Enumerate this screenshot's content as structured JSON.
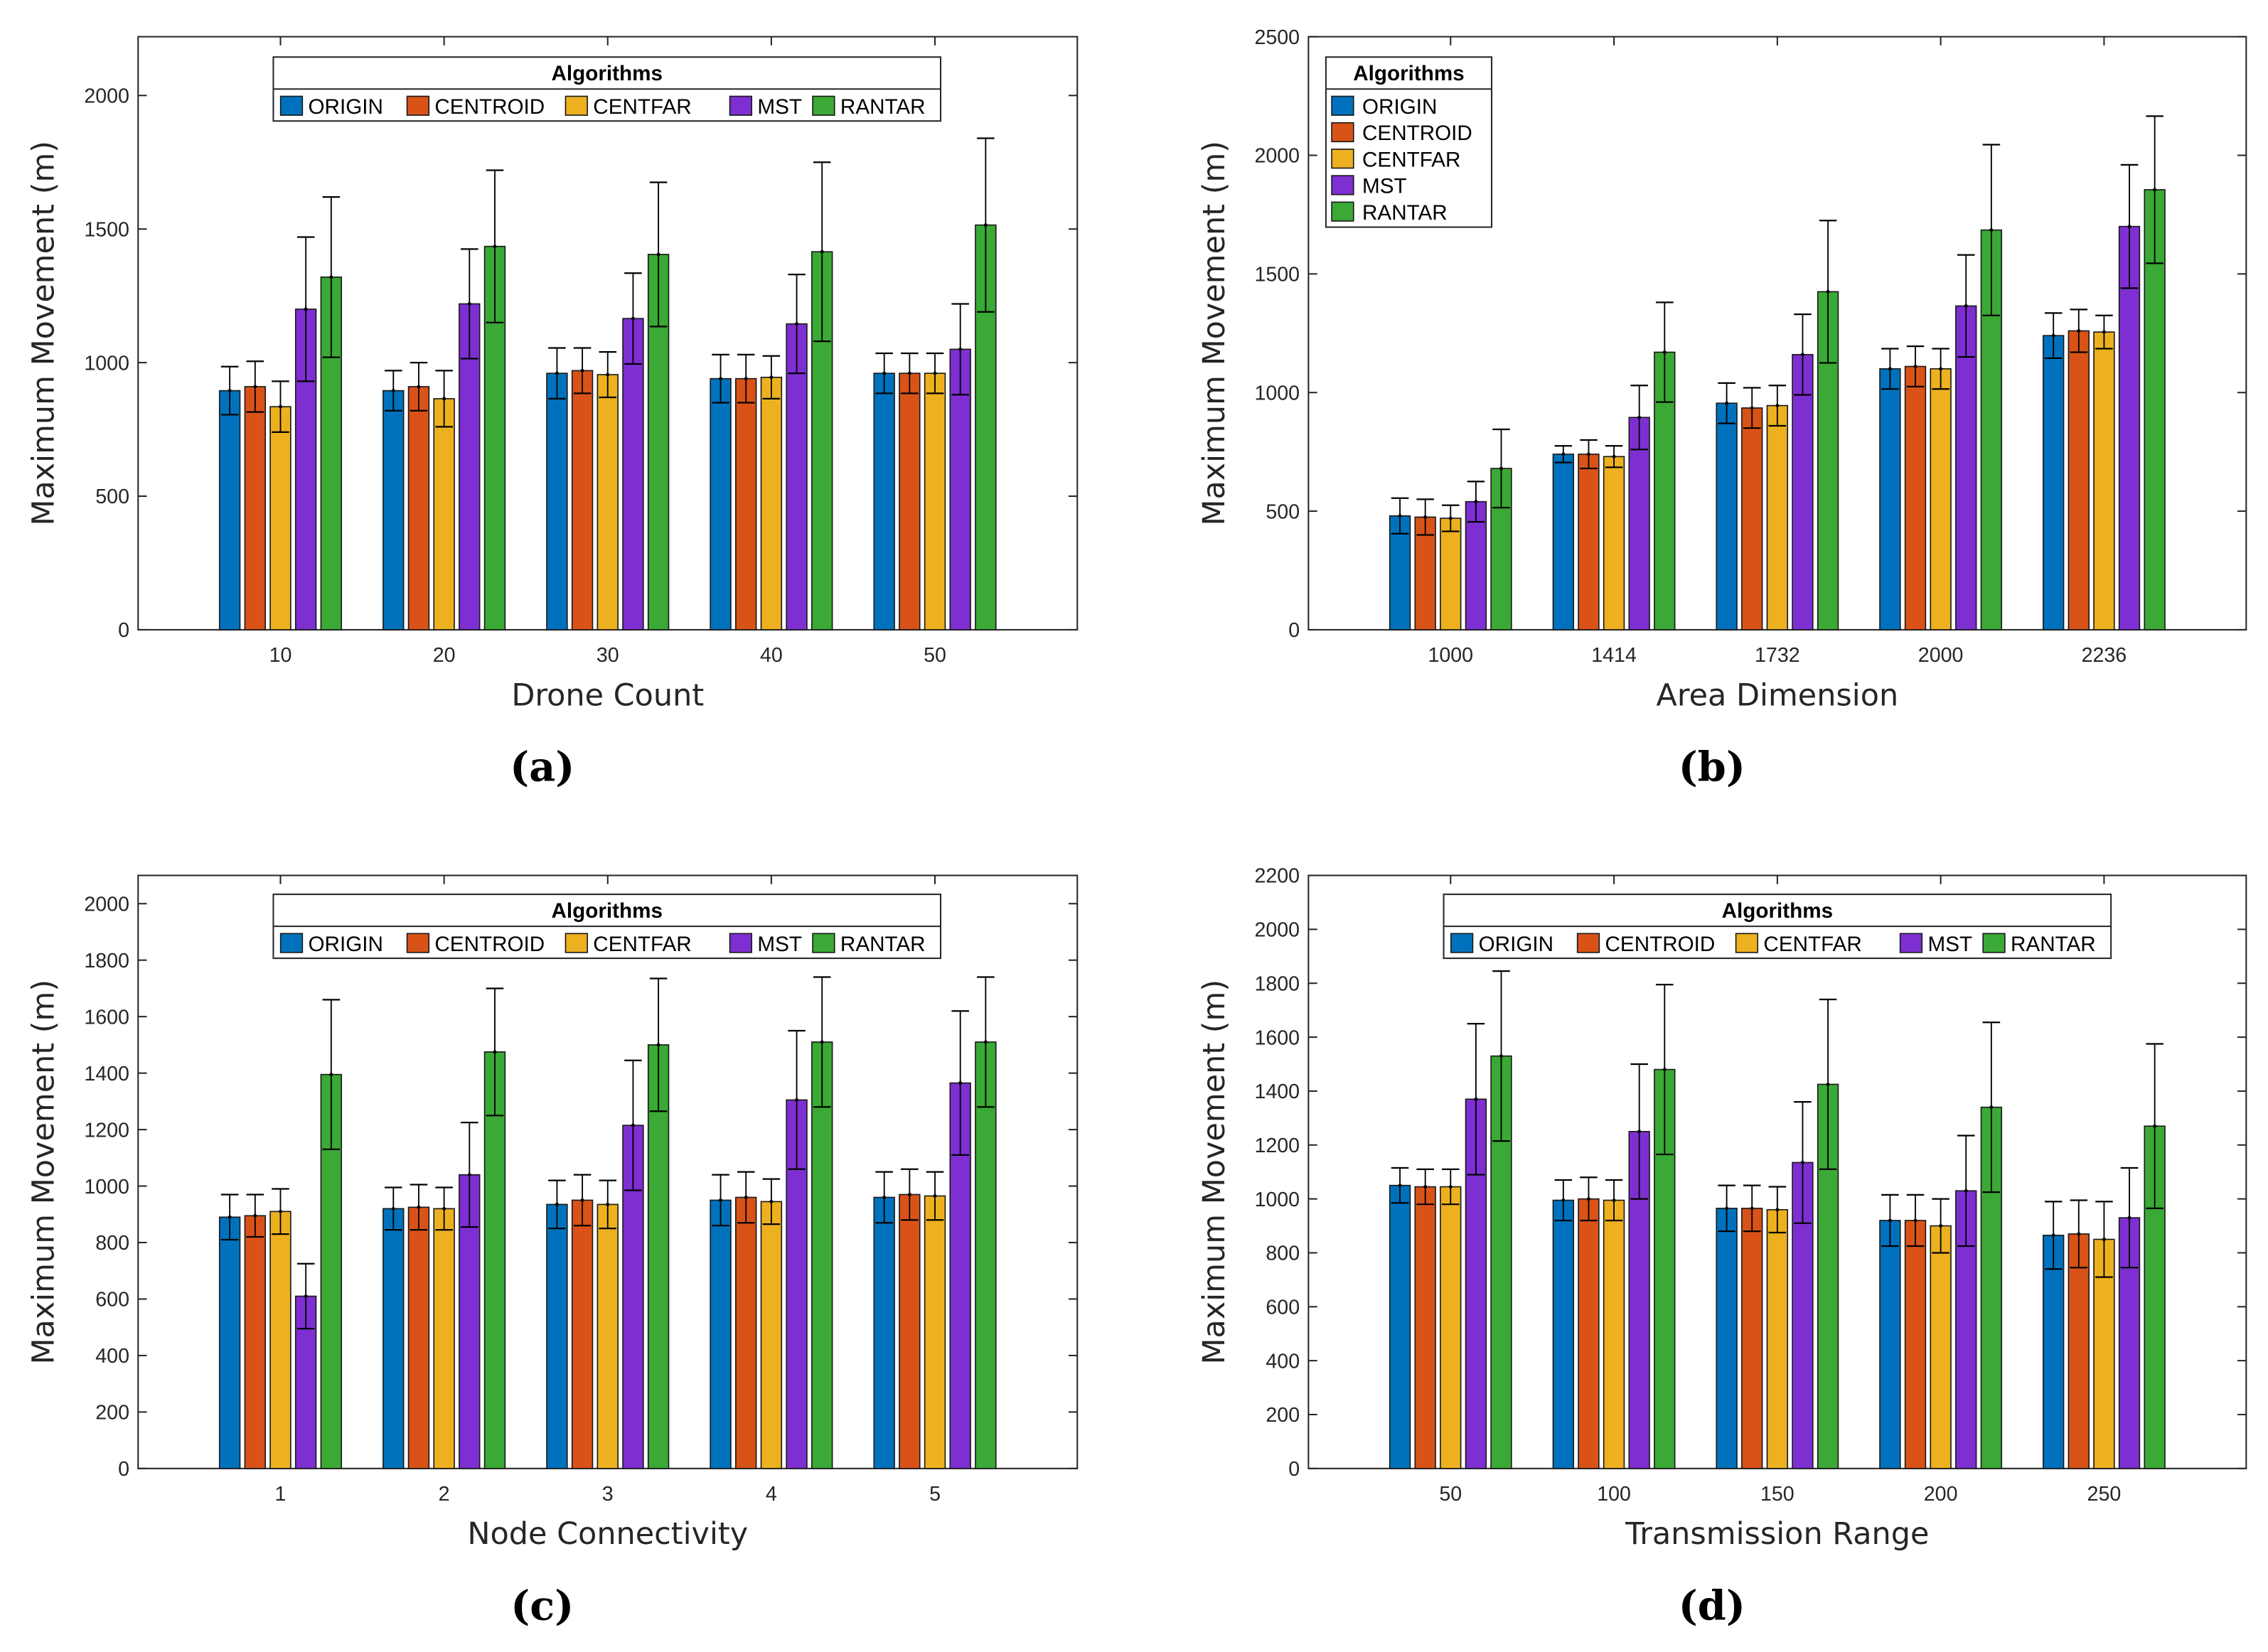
{
  "series_names": [
    "ORIGIN",
    "CENTROID",
    "CENTFAR",
    "MST",
    "RANTAR"
  ],
  "colors": [
    "#0072BD",
    "#D95319",
    "#EDB120",
    "#7E2FD2",
    "#3AA935"
  ],
  "chart_data": [
    {
      "type": "bar",
      "panel": "(a)",
      "legend_title": "Algorithms",
      "legend_placement": "top-center-horizontal",
      "xlabel": "Drone Count",
      "ylabel": "Maximum Movement (m)",
      "categories": [
        "10",
        "20",
        "30",
        "40",
        "50"
      ],
      "ylim": [
        0,
        2220
      ],
      "yticks": [
        0,
        500,
        1000,
        1500,
        2000
      ],
      "series": [
        {
          "name": "ORIGIN",
          "values": [
            895,
            895,
            960,
            940,
            960
          ],
          "errors": [
            90,
            75,
            95,
            90,
            75
          ]
        },
        {
          "name": "CENTROID",
          "values": [
            910,
            910,
            970,
            940,
            960
          ],
          "errors": [
            95,
            90,
            85,
            90,
            75
          ]
        },
        {
          "name": "CENTFAR",
          "values": [
            835,
            865,
            955,
            945,
            960
          ],
          "errors": [
            95,
            105,
            85,
            80,
            75
          ]
        },
        {
          "name": "MST",
          "values": [
            1200,
            1220,
            1165,
            1145,
            1050
          ],
          "errors": [
            270,
            205,
            170,
            185,
            170
          ]
        },
        {
          "name": "RANTAR",
          "values": [
            1320,
            1435,
            1405,
            1415,
            1515
          ],
          "errors": [
            300,
            285,
            270,
            335,
            325
          ]
        }
      ]
    },
    {
      "type": "bar",
      "panel": "(b)",
      "legend_title": "Algorithms",
      "legend_placement": "top-left-vertical",
      "xlabel": "Area Dimension",
      "ylabel": "Maximum Movement (m)",
      "categories": [
        "1000",
        "1414",
        "1732",
        "2000",
        "2236"
      ],
      "ylim": [
        0,
        2500
      ],
      "yticks": [
        0,
        500,
        1000,
        1500,
        2000,
        2500
      ],
      "series": [
        {
          "name": "ORIGIN",
          "values": [
            480,
            740,
            955,
            1100,
            1240
          ],
          "errors": [
            75,
            35,
            85,
            85,
            95
          ]
        },
        {
          "name": "CENTROID",
          "values": [
            475,
            740,
            935,
            1110,
            1260
          ],
          "errors": [
            75,
            60,
            85,
            85,
            90
          ]
        },
        {
          "name": "CENTFAR",
          "values": [
            470,
            730,
            945,
            1100,
            1255
          ],
          "errors": [
            55,
            45,
            85,
            85,
            70
          ]
        },
        {
          "name": "MST",
          "values": [
            540,
            895,
            1160,
            1365,
            1700
          ],
          "errors": [
            85,
            135,
            170,
            215,
            260
          ]
        },
        {
          "name": "RANTAR",
          "values": [
            680,
            1170,
            1425,
            1685,
            1855
          ],
          "errors": [
            165,
            210,
            300,
            360,
            310
          ]
        }
      ]
    },
    {
      "type": "bar",
      "panel": "(c)",
      "legend_title": "Algorithms",
      "legend_placement": "top-center-horizontal",
      "xlabel": "Node Connectivity",
      "ylabel": "Maximum Movement (m)",
      "categories": [
        "1",
        "2",
        "3",
        "4",
        "5"
      ],
      "ylim": [
        0,
        2100
      ],
      "yticks": [
        0,
        200,
        400,
        600,
        800,
        1000,
        1200,
        1400,
        1600,
        1800,
        2000
      ],
      "series": [
        {
          "name": "ORIGIN",
          "values": [
            890,
            920,
            935,
            950,
            960
          ],
          "errors": [
            80,
            75,
            85,
            90,
            90
          ]
        },
        {
          "name": "CENTROID",
          "values": [
            895,
            925,
            950,
            960,
            970
          ],
          "errors": [
            75,
            80,
            90,
            90,
            90
          ]
        },
        {
          "name": "CENTFAR",
          "values": [
            910,
            920,
            935,
            945,
            965
          ],
          "errors": [
            80,
            75,
            85,
            80,
            85
          ]
        },
        {
          "name": "MST",
          "values": [
            610,
            1040,
            1215,
            1305,
            1365
          ],
          "errors": [
            115,
            185,
            230,
            245,
            255
          ]
        },
        {
          "name": "RANTAR",
          "values": [
            1395,
            1475,
            1500,
            1510,
            1510
          ],
          "errors": [
            265,
            225,
            235,
            230,
            230
          ]
        }
      ]
    },
    {
      "type": "bar",
      "panel": "(d)",
      "legend_title": "Algorithms",
      "legend_placement": "top-center-horizontal",
      "xlabel": "Transmission Range",
      "ylabel": "Maximum Movement (m)",
      "categories": [
        "50",
        "100",
        "150",
        "200",
        "250"
      ],
      "ylim": [
        0,
        2200
      ],
      "yticks": [
        0,
        200,
        400,
        600,
        800,
        1000,
        1200,
        1400,
        1600,
        1800,
        2000,
        2200
      ],
      "series": [
        {
          "name": "ORIGIN",
          "values": [
            1050,
            995,
            965,
            920,
            865
          ],
          "errors": [
            65,
            75,
            85,
            95,
            125
          ]
        },
        {
          "name": "CENTROID",
          "values": [
            1045,
            1000,
            965,
            920,
            870
          ],
          "errors": [
            65,
            80,
            85,
            95,
            125
          ]
        },
        {
          "name": "CENTFAR",
          "values": [
            1045,
            995,
            960,
            900,
            850
          ],
          "errors": [
            65,
            75,
            85,
            100,
            140
          ]
        },
        {
          "name": "MST",
          "values": [
            1370,
            1250,
            1135,
            1030,
            930
          ],
          "errors": [
            280,
            250,
            225,
            205,
            185
          ]
        },
        {
          "name": "RANTAR",
          "values": [
            1530,
            1480,
            1425,
            1340,
            1270
          ],
          "errors": [
            315,
            315,
            315,
            315,
            305
          ]
        }
      ]
    }
  ]
}
